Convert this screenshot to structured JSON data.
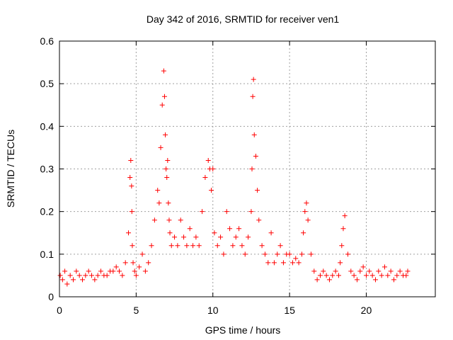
{
  "chart_data": {
    "type": "scatter",
    "title": "Day 342 of 2016, SRMTID for receiver ven1",
    "xlabel": "GPS time / hours",
    "ylabel": "SRMTID / TECUs",
    "xlim": [
      0,
      24.5
    ],
    "ylim": [
      0,
      0.6
    ],
    "xticks": [
      0,
      5,
      10,
      15,
      20
    ],
    "yticks": [
      0,
      0.1,
      0.2,
      0.3,
      0.4,
      0.5,
      0.6
    ],
    "ytick_labels": [
      "0",
      "0.1",
      "0.2",
      "0.3",
      "0.4",
      "0.5",
      "0.6"
    ],
    "grid": true,
    "marker": "+",
    "color": "#ff0000",
    "series": [
      {
        "name": "ven1",
        "x": [
          0.05,
          0.2,
          0.35,
          0.5,
          0.7,
          0.9,
          1.1,
          1.3,
          1.5,
          1.7,
          1.9,
          2.1,
          2.3,
          2.5,
          2.7,
          2.9,
          3.1,
          3.3,
          3.5,
          3.7,
          3.9,
          4.1,
          4.3,
          4.5,
          4.6,
          4.65,
          4.7,
          4.72,
          4.75,
          4.8,
          4.9,
          5.0,
          5.2,
          5.4,
          5.6,
          5.8,
          6.0,
          6.2,
          6.4,
          6.5,
          6.6,
          6.7,
          6.8,
          6.85,
          6.9,
          6.95,
          7.0,
          7.05,
          7.1,
          7.15,
          7.2,
          7.3,
          7.5,
          7.7,
          7.9,
          8.1,
          8.3,
          8.5,
          8.7,
          8.9,
          9.1,
          9.3,
          9.5,
          9.7,
          9.8,
          9.9,
          10.0,
          10.1,
          10.3,
          10.5,
          10.7,
          10.9,
          11.1,
          11.3,
          11.5,
          11.7,
          11.9,
          12.1,
          12.3,
          12.5,
          12.55,
          12.6,
          12.65,
          12.7,
          12.8,
          12.9,
          13.0,
          13.2,
          13.4,
          13.6,
          13.8,
          14.0,
          14.2,
          14.4,
          14.6,
          14.8,
          15.0,
          15.2,
          15.4,
          15.6,
          15.8,
          15.9,
          16.0,
          16.1,
          16.2,
          16.4,
          16.6,
          16.8,
          17.0,
          17.2,
          17.4,
          17.6,
          17.8,
          18.0,
          18.2,
          18.3,
          18.4,
          18.5,
          18.6,
          18.8,
          19.0,
          19.2,
          19.4,
          19.6,
          19.8,
          20.0,
          20.2,
          20.4,
          20.6,
          20.8,
          21.0,
          21.2,
          21.4,
          21.6,
          21.8,
          22.0,
          22.2,
          22.4,
          22.6,
          22.7
        ],
        "y": [
          0.05,
          0.04,
          0.06,
          0.03,
          0.05,
          0.04,
          0.06,
          0.05,
          0.04,
          0.05,
          0.06,
          0.05,
          0.04,
          0.05,
          0.06,
          0.05,
          0.05,
          0.06,
          0.06,
          0.07,
          0.06,
          0.05,
          0.08,
          0.15,
          0.28,
          0.32,
          0.26,
          0.2,
          0.12,
          0.08,
          0.06,
          0.05,
          0.07,
          0.1,
          0.06,
          0.08,
          0.12,
          0.18,
          0.25,
          0.22,
          0.35,
          0.45,
          0.53,
          0.47,
          0.38,
          0.3,
          0.28,
          0.32,
          0.22,
          0.18,
          0.15,
          0.12,
          0.14,
          0.12,
          0.18,
          0.14,
          0.12,
          0.16,
          0.12,
          0.14,
          0.12,
          0.2,
          0.28,
          0.32,
          0.3,
          0.25,
          0.3,
          0.15,
          0.12,
          0.14,
          0.1,
          0.2,
          0.16,
          0.12,
          0.14,
          0.16,
          0.12,
          0.1,
          0.14,
          0.2,
          0.3,
          0.47,
          0.51,
          0.38,
          0.33,
          0.25,
          0.18,
          0.12,
          0.1,
          0.08,
          0.15,
          0.08,
          0.1,
          0.12,
          0.08,
          0.1,
          0.1,
          0.08,
          0.09,
          0.08,
          0.1,
          0.15,
          0.2,
          0.22,
          0.18,
          0.1,
          0.06,
          0.04,
          0.05,
          0.06,
          0.05,
          0.04,
          0.05,
          0.06,
          0.05,
          0.08,
          0.12,
          0.16,
          0.19,
          0.1,
          0.06,
          0.05,
          0.04,
          0.06,
          0.07,
          0.05,
          0.06,
          0.05,
          0.04,
          0.06,
          0.05,
          0.07,
          0.05,
          0.06,
          0.04,
          0.05,
          0.06,
          0.05,
          0.05,
          0.06
        ]
      }
    ]
  }
}
